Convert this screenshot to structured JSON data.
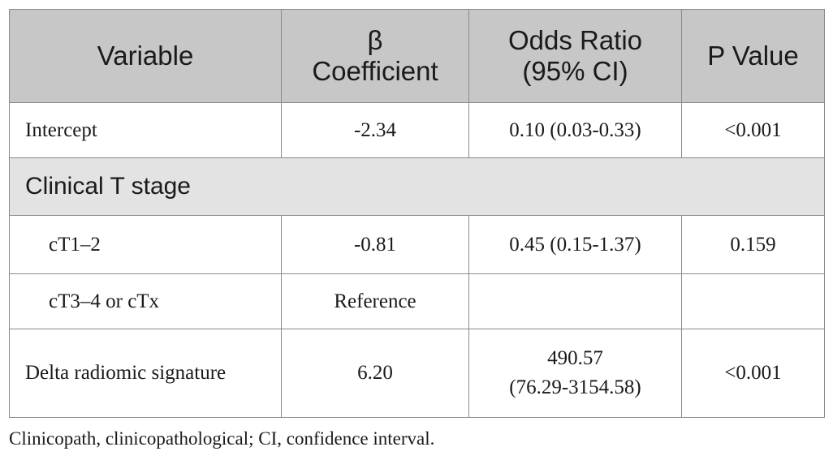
{
  "table": {
    "headers": {
      "variable": "Variable",
      "beta_symbol": "β",
      "beta_word": "Coefficient",
      "or_line1": "Odds Ratio",
      "or_line2": "(95% CI)",
      "p_value": "P Value"
    },
    "rows": {
      "intercept": {
        "variable": "Intercept",
        "beta": "-2.34",
        "or": "0.10 (0.03-0.33)",
        "p": "<0.001"
      },
      "section_t_stage": {
        "label": "Clinical T stage"
      },
      "ct12": {
        "variable": "cT1–2",
        "beta": "-0.81",
        "or": "0.45 (0.15-1.37)",
        "p": "0.159"
      },
      "ct34": {
        "variable": "cT3–4 or cTx",
        "beta": "Reference",
        "or": "",
        "p": ""
      },
      "delta": {
        "variable": "Delta radiomic signature",
        "beta": "6.20",
        "or_line1": "490.57",
        "or_line2": "(76.29-3154.58)",
        "p": "<0.001"
      }
    }
  },
  "footnote": "Clinicopath, clinicopathological; CI, confidence interval."
}
